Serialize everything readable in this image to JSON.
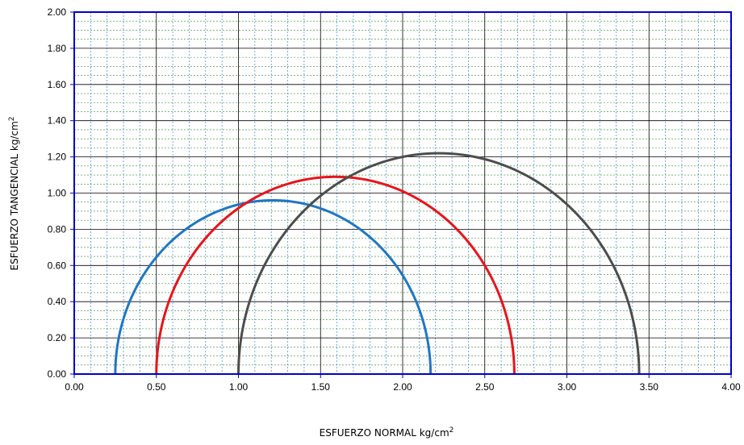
{
  "chart_data": {
    "type": "line",
    "title": "",
    "xlabel": "ESFUERZO NORMAL kg/cm",
    "xlabel_sup": "2",
    "ylabel": "ESFUERZO TANGENCIAL kg/cm",
    "ylabel_sup": "2",
    "xlim": [
      0,
      4
    ],
    "ylim": [
      0,
      2
    ],
    "x_ticks": [
      "0.00",
      "0.50",
      "1.00",
      "1.50",
      "2.00",
      "2.50",
      "3.00",
      "3.50",
      "4.00"
    ],
    "y_ticks": [
      "0.00",
      "0.20",
      "0.40",
      "0.60",
      "0.80",
      "1.00",
      "1.20",
      "1.40",
      "1.60",
      "1.80",
      "2.00"
    ],
    "grid": true,
    "colors": {
      "axis": "#0000cc",
      "major_grid": "#000000",
      "minor_grid_x": "#1f6fcf",
      "minor_grid_y": "#2e8b2e"
    },
    "series": [
      {
        "sigma3": 0.25,
        "sigma1": 2.17,
        "color": "#1f77c4"
      },
      {
        "sigma3": 0.5,
        "sigma1": 2.68,
        "color": "#e8141b"
      },
      {
        "sigma3": 1.0,
        "sigma1": 3.44,
        "color": "#4d4d4d"
      }
    ]
  }
}
